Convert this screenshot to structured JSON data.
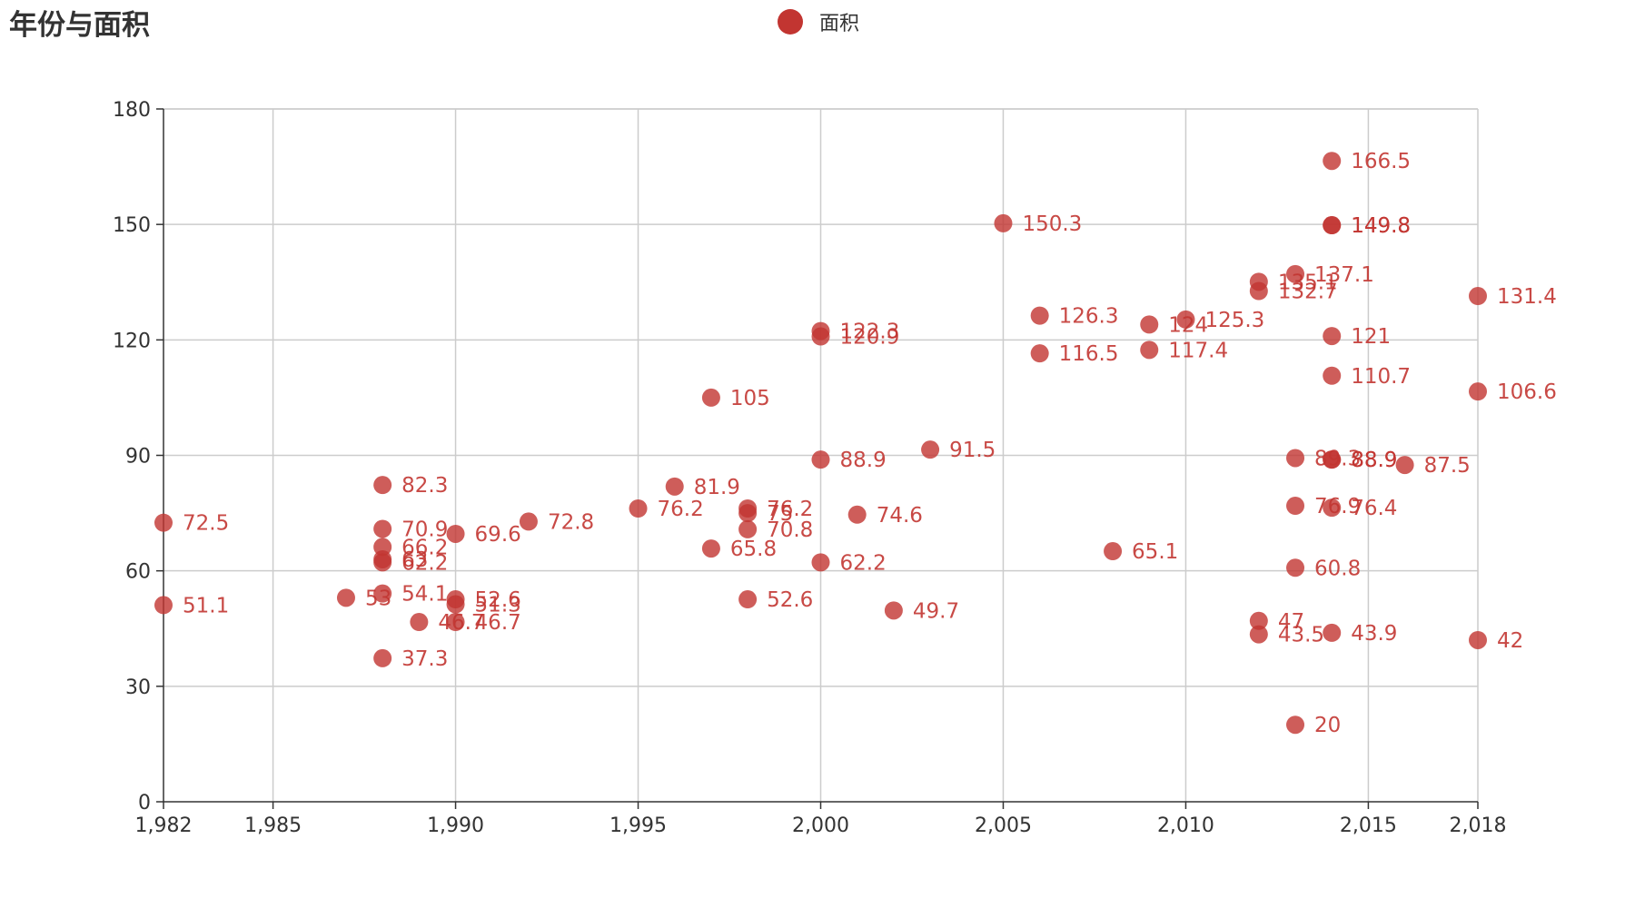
{
  "chart_data": {
    "type": "scatter",
    "title": "年份与面积",
    "xlabel": "",
    "ylabel": "",
    "xlim": [
      1982,
      2018
    ],
    "ylim": [
      0,
      180
    ],
    "x_ticks": [
      1982,
      1985,
      1990,
      1995,
      2000,
      2005,
      2010,
      2015,
      2018
    ],
    "x_tick_labels": [
      "1,982",
      "1,985",
      "1,990",
      "1,995",
      "2,000",
      "2,005",
      "2,010",
      "2,015",
      "2,018"
    ],
    "y_ticks": [
      0,
      30,
      60,
      90,
      120,
      150,
      180
    ],
    "y_tick_labels": [
      "0",
      "30",
      "60",
      "90",
      "120",
      "150",
      "180"
    ],
    "grid": true,
    "legend_position": "top-center",
    "series": [
      {
        "name": "面积",
        "color": "#c23531",
        "points": [
          {
            "x": 1982,
            "y": 72.5
          },
          {
            "x": 1982,
            "y": 51.1
          },
          {
            "x": 1987,
            "y": 53
          },
          {
            "x": 1988,
            "y": 82.3
          },
          {
            "x": 1988,
            "y": 70.9
          },
          {
            "x": 1988,
            "y": 66.2
          },
          {
            "x": 1988,
            "y": 63
          },
          {
            "x": 1988,
            "y": 62.2
          },
          {
            "x": 1988,
            "y": 54.1
          },
          {
            "x": 1988,
            "y": 37.3
          },
          {
            "x": 1989,
            "y": 46.7
          },
          {
            "x": 1990,
            "y": 69.6
          },
          {
            "x": 1990,
            "y": 52.6
          },
          {
            "x": 1990,
            "y": 51.3
          },
          {
            "x": 1990,
            "y": 46.7
          },
          {
            "x": 1992,
            "y": 72.8
          },
          {
            "x": 1995,
            "y": 76.2
          },
          {
            "x": 1996,
            "y": 81.9
          },
          {
            "x": 1997,
            "y": 105
          },
          {
            "x": 1997,
            "y": 65.8
          },
          {
            "x": 1998,
            "y": 76.2
          },
          {
            "x": 1998,
            "y": 75
          },
          {
            "x": 1998,
            "y": 70.8
          },
          {
            "x": 1998,
            "y": 52.6
          },
          {
            "x": 2000,
            "y": 122.3
          },
          {
            "x": 2000,
            "y": 120.9
          },
          {
            "x": 2000,
            "y": 88.9
          },
          {
            "x": 2000,
            "y": 62.2
          },
          {
            "x": 2001,
            "y": 74.6
          },
          {
            "x": 2002,
            "y": 49.7
          },
          {
            "x": 2003,
            "y": 91.5
          },
          {
            "x": 2005,
            "y": 150.3
          },
          {
            "x": 2006,
            "y": 126.3
          },
          {
            "x": 2006,
            "y": 116.5
          },
          {
            "x": 2008,
            "y": 65.1
          },
          {
            "x": 2009,
            "y": 124
          },
          {
            "x": 2009,
            "y": 117.4
          },
          {
            "x": 2010,
            "y": 125.3
          },
          {
            "x": 2012,
            "y": 135.1
          },
          {
            "x": 2012,
            "y": 132.7
          },
          {
            "x": 2012,
            "y": 47
          },
          {
            "x": 2012,
            "y": 43.5
          },
          {
            "x": 2013,
            "y": 137.1
          },
          {
            "x": 2013,
            "y": 89.3
          },
          {
            "x": 2013,
            "y": 76.9
          },
          {
            "x": 2013,
            "y": 60.8
          },
          {
            "x": 2013,
            "y": 20
          },
          {
            "x": 2014,
            "y": 166.5
          },
          {
            "x": 2014,
            "y": 149.8
          },
          {
            "x": 2014,
            "y": 149.8
          },
          {
            "x": 2014,
            "y": 121
          },
          {
            "x": 2014,
            "y": 110.7
          },
          {
            "x": 2014,
            "y": 88.9
          },
          {
            "x": 2014,
            "y": 88.9
          },
          {
            "x": 2014,
            "y": 76.4
          },
          {
            "x": 2014,
            "y": 43.9
          },
          {
            "x": 2016,
            "y": 87.5
          },
          {
            "x": 2018,
            "y": 131.4
          },
          {
            "x": 2018,
            "y": 106.6
          },
          {
            "x": 2018,
            "y": 42
          }
        ]
      }
    ]
  }
}
